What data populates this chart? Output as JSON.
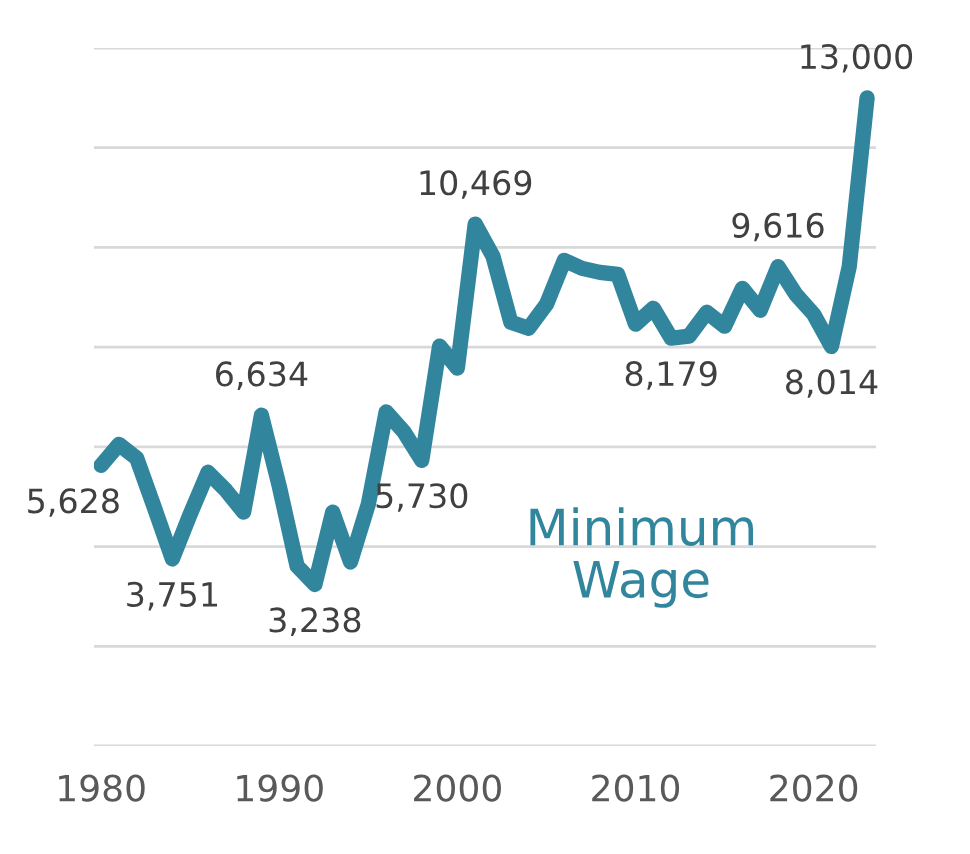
{
  "chart_data": {
    "type": "line",
    "title": "Minimum Wage",
    "x": [
      1980,
      1981,
      1982,
      1983,
      1984,
      1985,
      1986,
      1987,
      1988,
      1989,
      1990,
      1991,
      1992,
      1993,
      1994,
      1995,
      1996,
      1997,
      1998,
      1999,
      2000,
      2001,
      2002,
      2003,
      2004,
      2005,
      2006,
      2007,
      2008,
      2009,
      2010,
      2011,
      2012,
      2013,
      2014,
      2015,
      2016,
      2017,
      2018,
      2019,
      2020,
      2021,
      2022,
      2023
    ],
    "series": [
      {
        "color": "#31869e",
        "values": [
          5628,
          6050,
          5770,
          4770,
          3751,
          4650,
          5490,
          5130,
          4690,
          6634,
          5210,
          3610,
          3238,
          4690,
          3690,
          4850,
          6700,
          6300,
          5730,
          8020,
          7580,
          10469,
          9820,
          8500,
          8380,
          8860,
          9740,
          9580,
          9500,
          9460,
          8460,
          8780,
          8179,
          8220,
          8700,
          8420,
          9180,
          8740,
          9616,
          9060,
          8660,
          8014,
          9620,
          13000
        ],
        "value_labels": [
          "5,628",
          null,
          null,
          null,
          "3,751",
          null,
          null,
          null,
          null,
          "6,634",
          null,
          null,
          "3,238",
          null,
          null,
          null,
          null,
          null,
          "5,730",
          null,
          null,
          "10,469",
          null,
          null,
          null,
          null,
          null,
          null,
          null,
          null,
          null,
          null,
          "8,179",
          null,
          null,
          null,
          null,
          null,
          "9,616",
          null,
          null,
          "8,014",
          null,
          "13,000"
        ]
      }
    ],
    "xlim": [
      1979.6,
      2023.5
    ],
    "xticks": [
      1980,
      1990,
      2000,
      2010,
      2020
    ],
    "ylim": [
      0,
      14000
    ],
    "yticks": [
      {
        "value": 0,
        "label": null
      },
      {
        "value": 2000,
        "label": null
      },
      {
        "value": 4000,
        "label": null
      },
      {
        "value": 6000,
        "label": null
      },
      {
        "value": 8000,
        "label": null
      },
      {
        "value": 10000,
        "label": null
      },
      {
        "value": 12000,
        "label": null
      },
      {
        "value": 14000,
        "label": null
      }
    ],
    "grid": "y",
    "tick_labels": "x",
    "legend": false,
    "marker": "none",
    "line_style": "solid"
  }
}
